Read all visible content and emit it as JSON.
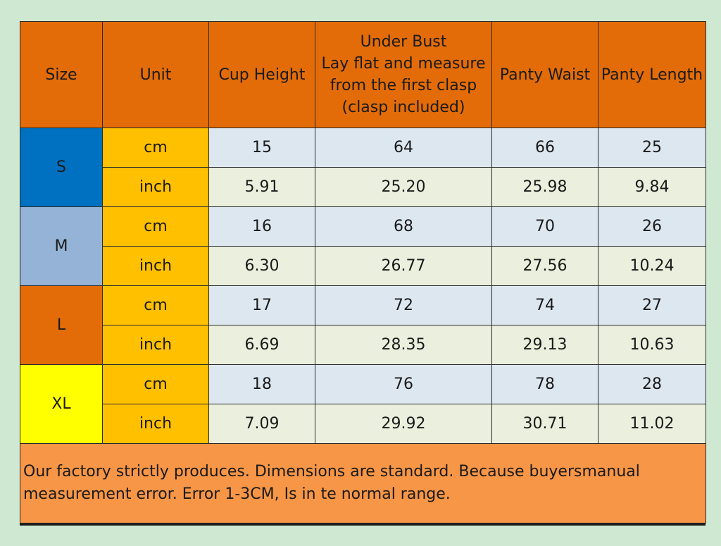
{
  "colors": {
    "page_background": "#cfe8d2",
    "header_background": "#e36c09",
    "unit_background": "#ffc000",
    "cm_row_background": "#dde7f0",
    "inch_row_background": "#ebf0de",
    "note_background": "#f79646"
  },
  "header": {
    "size": "Size",
    "unit": "Unit",
    "cup_height": "Cup Height",
    "under_bust_lines": [
      "Under Bust",
      "Lay flat and measure",
      "from the first clasp",
      "(clasp included)"
    ],
    "panty_waist": "Panty Waist",
    "panty_length": "Panty Length"
  },
  "sizes": [
    {
      "label": "S",
      "color": "#0070c0",
      "cm": {
        "unit": "cm",
        "cup_height": "15",
        "under_bust": "64",
        "panty_waist": "66",
        "panty_length": "25"
      },
      "inch": {
        "unit": "inch",
        "cup_height": "5.91",
        "under_bust": "25.20",
        "panty_waist": "25.98",
        "panty_length": "9.84"
      }
    },
    {
      "label": "M",
      "color": "#95b3d7",
      "cm": {
        "unit": "cm",
        "cup_height": "16",
        "under_bust": "68",
        "panty_waist": "70",
        "panty_length": "26"
      },
      "inch": {
        "unit": "inch",
        "cup_height": "6.30",
        "under_bust": "26.77",
        "panty_waist": "27.56",
        "panty_length": "10.24"
      }
    },
    {
      "label": "L",
      "color": "#e36c09",
      "cm": {
        "unit": "cm",
        "cup_height": "17",
        "under_bust": "72",
        "panty_waist": "74",
        "panty_length": "27"
      },
      "inch": {
        "unit": "inch",
        "cup_height": "6.69",
        "under_bust": "28.35",
        "panty_waist": "29.13",
        "panty_length": "10.63"
      }
    },
    {
      "label": "XL",
      "color": "#ffff00",
      "cm": {
        "unit": "cm",
        "cup_height": "18",
        "under_bust": "76",
        "panty_waist": "78",
        "panty_length": "28"
      },
      "inch": {
        "unit": "inch",
        "cup_height": "7.09",
        "under_bust": "29.92",
        "panty_waist": "30.71",
        "panty_length": "11.02"
      }
    }
  ],
  "note_lines": [
    "Our factory strictly produces. Dimensions are standard. Because buyersmanual",
    "measurement error. Error 1-3CM, Is in te normal range."
  ]
}
